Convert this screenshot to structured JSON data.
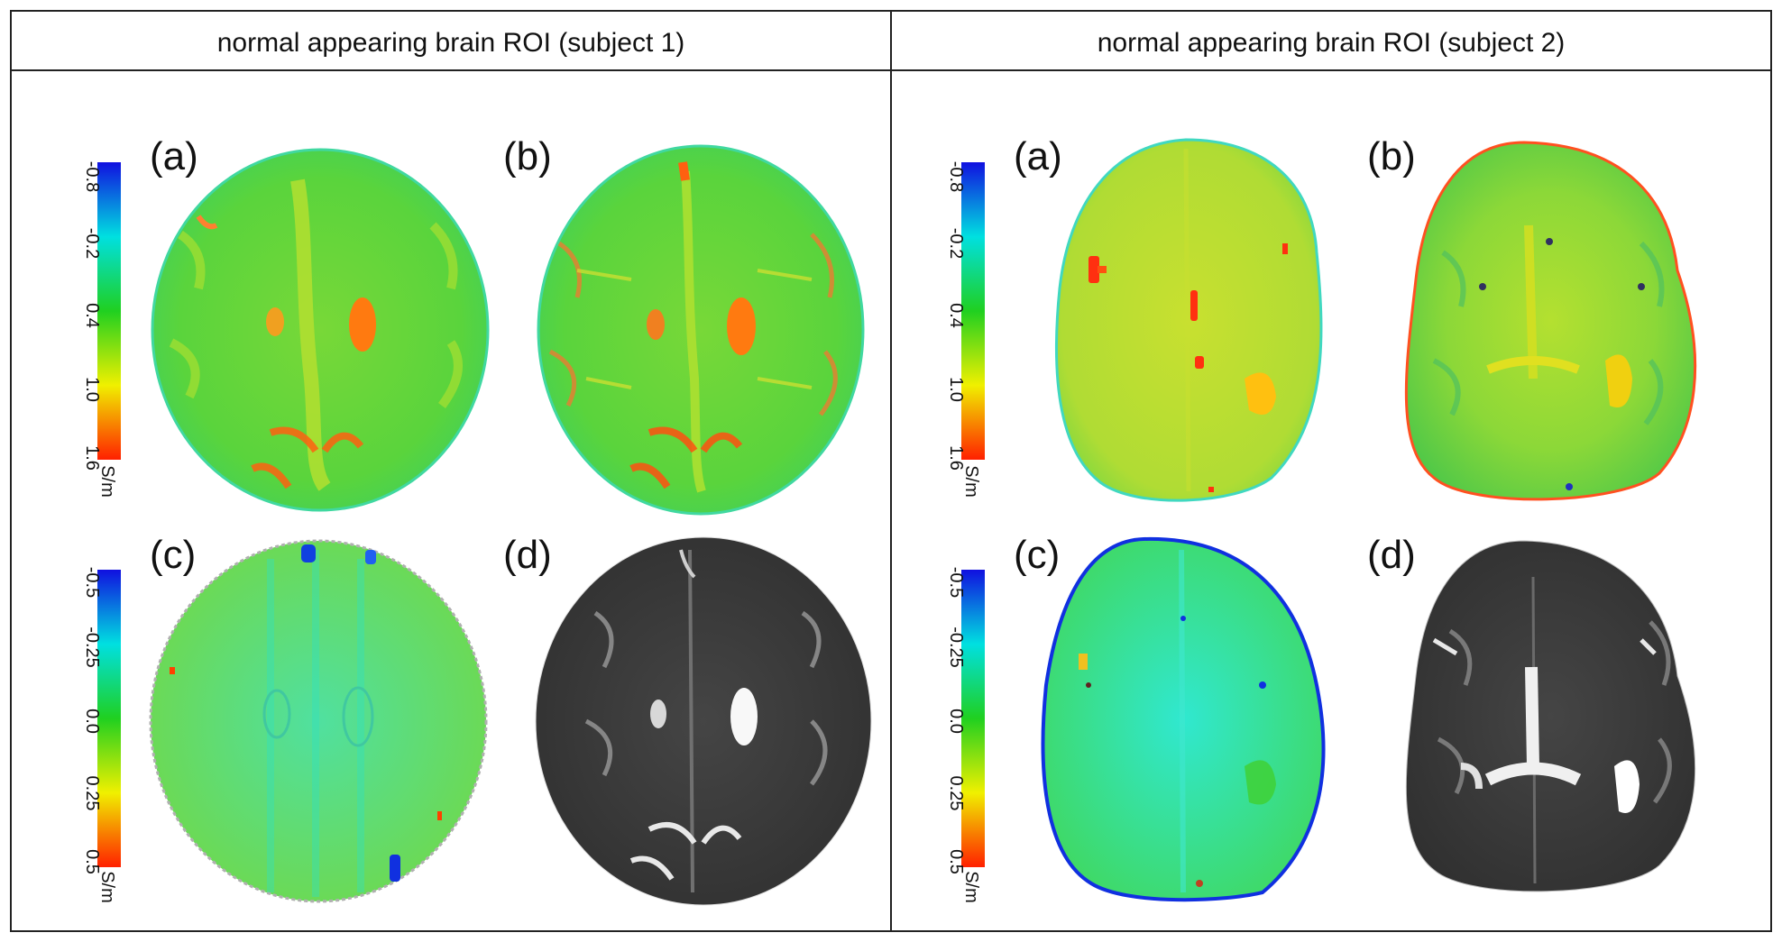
{
  "headers": [
    "normal appearing brain ROI (subject 1)",
    "normal appearing brain ROI (subject 2)"
  ],
  "panel_labels": [
    "(a)",
    "(b)",
    "(c)",
    "(d)"
  ],
  "colorbars": {
    "top": {
      "ticks": [
        "-0.8",
        "-0.2",
        "0.4",
        "1.0",
        "1.6"
      ],
      "unit": "S/m",
      "colors": [
        "#1010e0",
        "#00e0e0",
        "#20d020",
        "#f0f000",
        "#ff2000"
      ]
    },
    "bottom": {
      "ticks": [
        "-0.5",
        "-0.25",
        "0.0",
        "0.25",
        "0.5"
      ],
      "unit": "S/m",
      "colors": [
        "#1010e0",
        "#00e0e0",
        "#20d020",
        "#f0f000",
        "#ff2000"
      ]
    }
  },
  "colors": {
    "conductivity_green": "#5ad43c",
    "conductivity_yellowgreen": "#b8e032",
    "phase_cyan": "#40e0b0",
    "mri_gray": "#3c3c3c",
    "csf_orange": "#ff7a10",
    "border": "#222222"
  }
}
